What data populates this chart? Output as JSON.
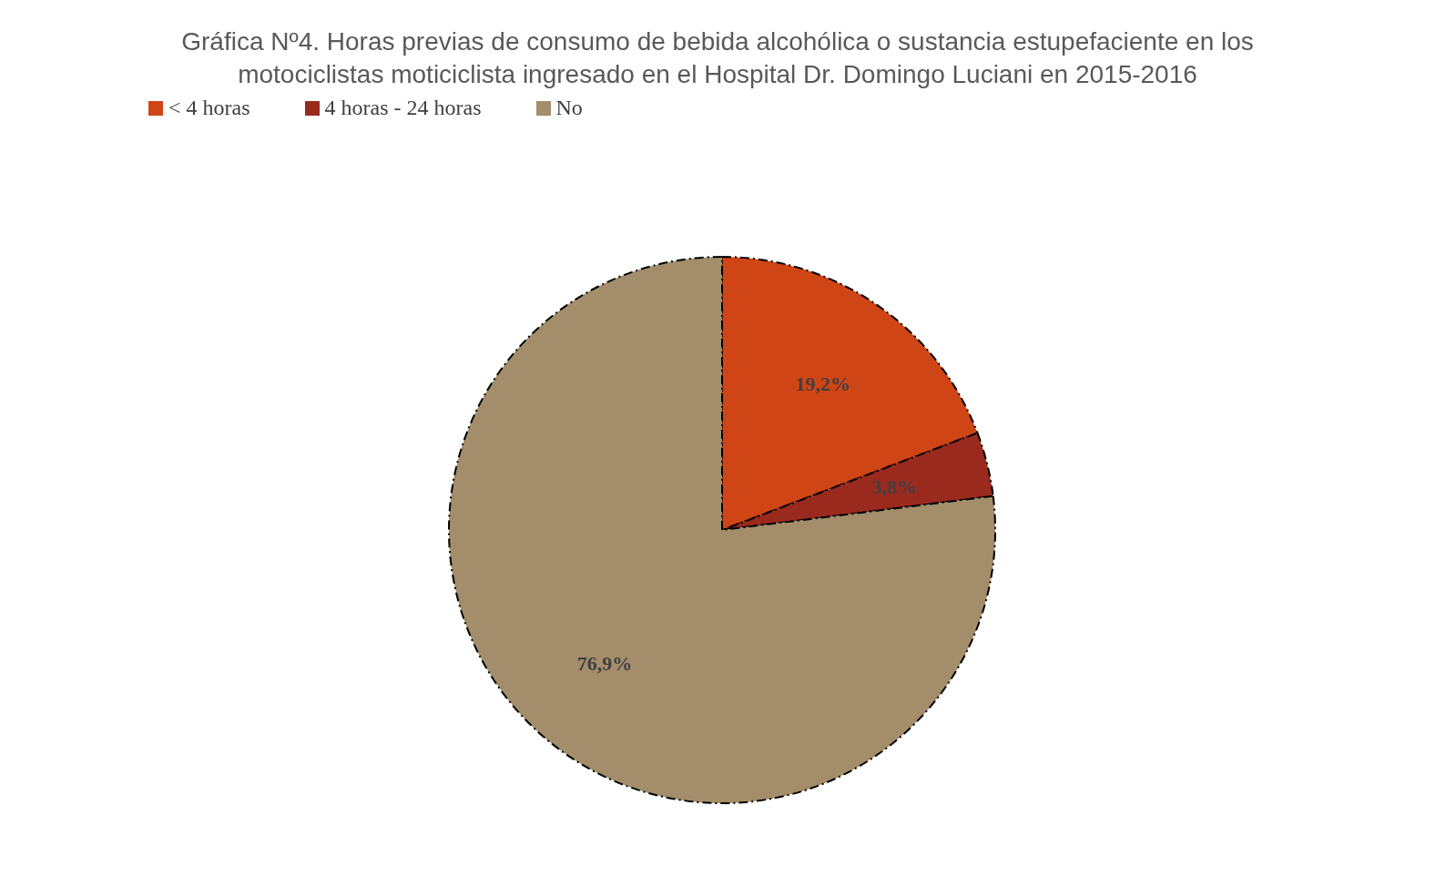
{
  "chart_data": {
    "type": "pie",
    "title": "Gráfica Nº4. Horas previas de consumo de bebida alcohólica o sustancia estupefaciente en los motociclistas moticiclista ingresado en el Hospital Dr. Domingo Luciani en 2015-2016",
    "categories": [
      "< 4 horas",
      "4 horas - 24 horas",
      "No"
    ],
    "values": [
      19.2,
      3.8,
      76.9
    ],
    "value_labels": [
      "19,2%",
      "3,8%",
      "76,9%"
    ],
    "colors": [
      "#d04515",
      "#9a2a1e",
      "#a38d6a"
    ],
    "legend": "top left"
  }
}
